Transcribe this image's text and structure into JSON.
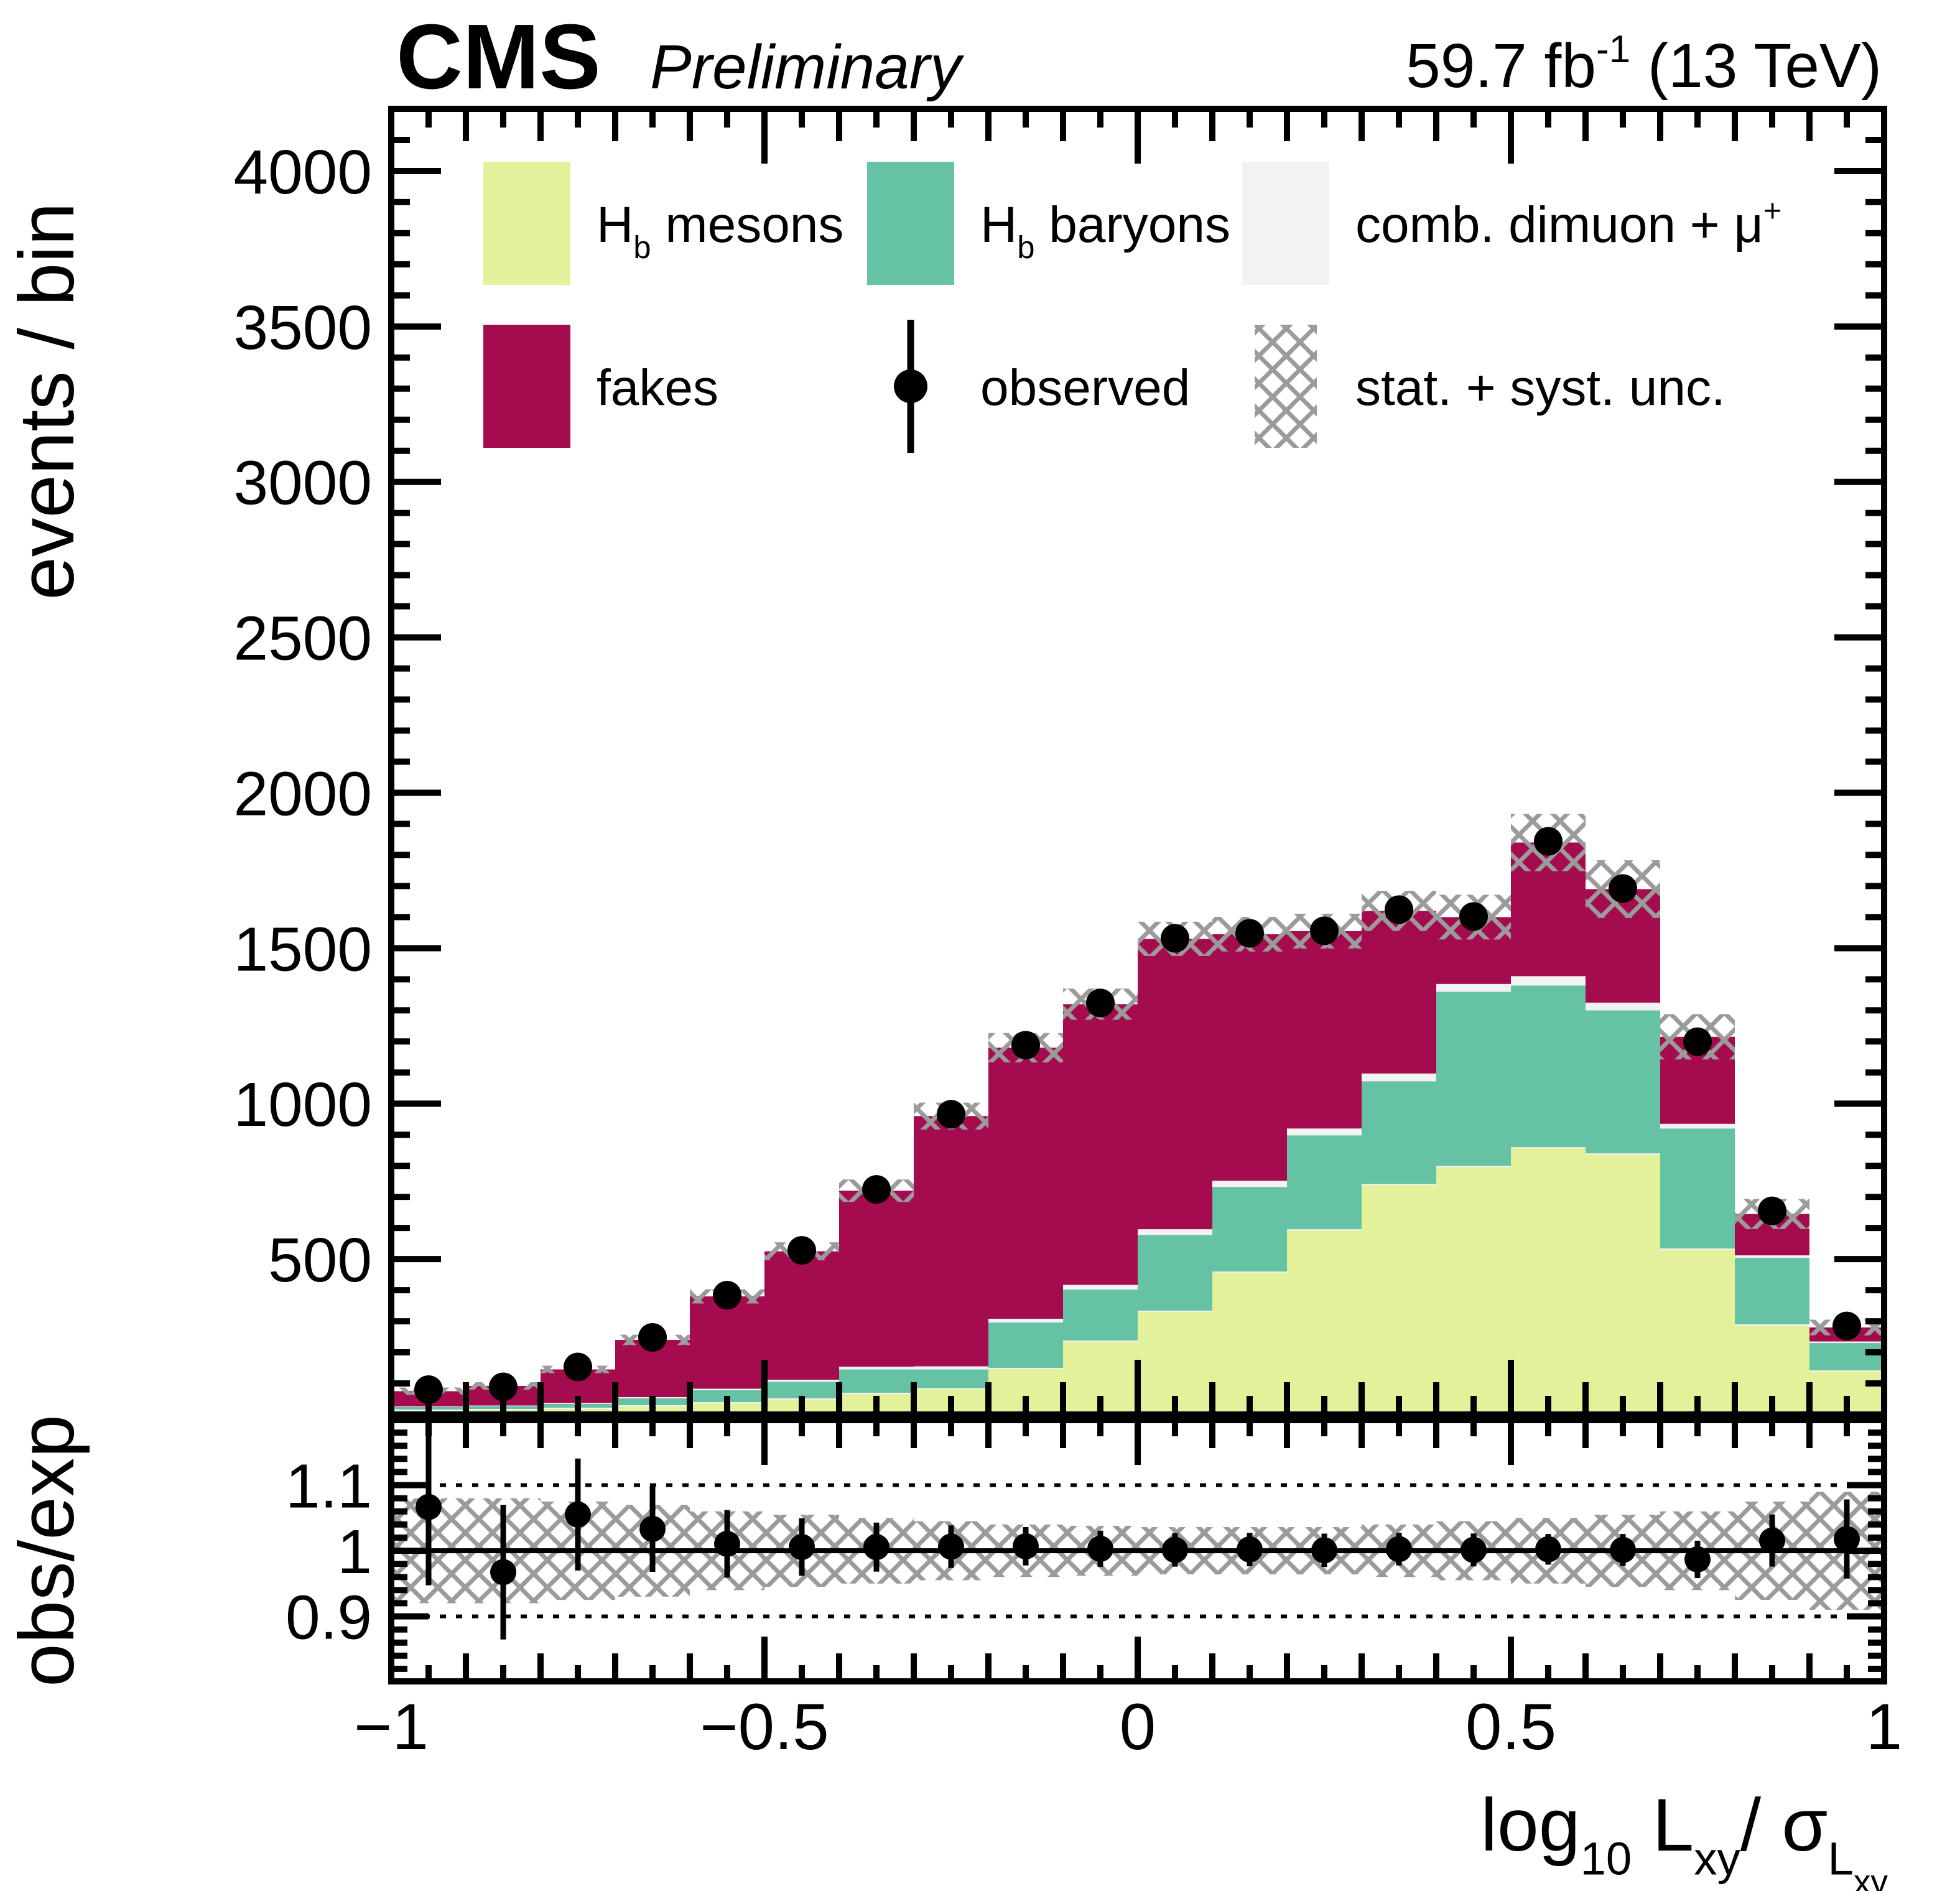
{
  "header": {
    "experiment": "CMS",
    "status": "Preliminary",
    "lumi_parts": [
      {
        "t": "59.7 fb"
      },
      {
        "t": "-1",
        "sup": 1
      },
      {
        "t": " (13 TeV)"
      }
    ]
  },
  "colors": {
    "hb_mesons": "#e3f29a",
    "hb_baryons": "#66c2a5",
    "comb_dimuon": "#f2f2f2",
    "fakes": "#a50b4f",
    "observed": "#000000",
    "uncertainty_hatch": "#9b9b9b",
    "axis": "#000000",
    "background": "#ffffff"
  },
  "legend": {
    "entries": [
      {
        "id": "hb-mesons",
        "type": "fill",
        "color": "#e3f29a",
        "label_parts": [
          {
            "t": "H"
          },
          {
            "t": "b",
            "sub": 1
          },
          {
            "t": " mesons"
          }
        ]
      },
      {
        "id": "hb-baryons",
        "type": "fill",
        "color": "#66c2a5",
        "label_parts": [
          {
            "t": "H"
          },
          {
            "t": "b",
            "sub": 1
          },
          {
            "t": " baryons"
          }
        ]
      },
      {
        "id": "comb-dimuon",
        "type": "fill",
        "color": "#f2f2f2",
        "label_parts": [
          {
            "t": "comb. dimuon + μ"
          },
          {
            "t": "+",
            "sup": 1
          }
        ]
      },
      {
        "id": "fakes",
        "type": "fill",
        "color": "#a50b4f",
        "label_parts": [
          {
            "t": "fakes"
          }
        ]
      },
      {
        "id": "observed",
        "type": "marker",
        "color": "#000000",
        "label_parts": [
          {
            "t": "observed"
          }
        ]
      },
      {
        "id": "stat-syst-unc",
        "type": "hatch",
        "color": "#9b9b9b",
        "label_parts": [
          {
            "t": "stat. + syst. unc."
          }
        ]
      }
    ]
  },
  "main_axis": {
    "y_title": "events / bin",
    "y_tick_labels": [
      "500",
      "1000",
      "1500",
      "2000",
      "2500",
      "3000",
      "3500",
      "4000"
    ],
    "y_tick_values": [
      500,
      1000,
      1500,
      2000,
      2500,
      3000,
      3500,
      4000
    ],
    "ylim": [
      0,
      4200
    ]
  },
  "ratio_axis": {
    "y_title": "obs/exp",
    "y_tick_labels": [
      "0.9",
      "1",
      "1.1"
    ],
    "y_tick_values": [
      0.9,
      1.0,
      1.1
    ],
    "ylim": [
      0.8,
      1.2
    ],
    "reference_line": 1.0,
    "dotted_lines": [
      0.9,
      1.1
    ]
  },
  "x_axis": {
    "title_parts": [
      {
        "t": "log"
      },
      {
        "t": "10",
        "sub": 1
      },
      {
        "t": " L"
      },
      {
        "t": "xy",
        "sub": 1
      },
      {
        "t": "/ "
      },
      {
        "t": "σ"
      },
      {
        "t": "L",
        "sub": 1
      },
      {
        "t": "xy",
        "sub": 2
      }
    ],
    "tick_labels": [
      "−1",
      "−0.5",
      "0",
      "0.5",
      "1"
    ],
    "tick_values": [
      -1,
      -0.5,
      0,
      0.5,
      1
    ],
    "xlim": [
      -1,
      1
    ]
  },
  "chart_data": {
    "type": "bar",
    "stacked": true,
    "panels": [
      "stacked histogram with observed points",
      "obs/exp ratio"
    ],
    "title": "CMS Preliminary, 59.7 fb^-1 (13 TeV)",
    "xlabel": "log10 Lxy / sigma_Lxy",
    "ylabel": "events / bin",
    "bin_edges": [
      -1.0,
      -0.9,
      -0.8,
      -0.7,
      -0.6,
      -0.5,
      -0.4,
      -0.3,
      -0.2,
      -0.1,
      0.0,
      0.1,
      0.2,
      0.3,
      0.4,
      0.5,
      0.6,
      0.7,
      0.8,
      0.9,
      1.0
    ],
    "series": [
      {
        "name": "hb_mesons",
        "label": "Hb mesons",
        "values": [
          16,
          18,
          22,
          30,
          40,
          52,
          70,
          85,
          150,
          238,
          334,
          460,
          596,
          742,
          800,
          860,
          840,
          534,
          290,
          142
        ]
      },
      {
        "name": "hb_baryons",
        "label": "Hb baryons",
        "values": [
          8,
          9,
          12,
          22,
          38,
          53,
          75,
          60,
          146,
          164,
          244,
          272,
          302,
          330,
          560,
          520,
          460,
          386,
          214,
          88
        ]
      },
      {
        "name": "comb_dimuon",
        "label": "comb. dimuon + mu+",
        "values": [
          2,
          2,
          3,
          4,
          5,
          7,
          9,
          10,
          12,
          15,
          18,
          20,
          22,
          25,
          25,
          30,
          25,
          15,
          8,
          5
        ]
      },
      {
        "name": "fakes",
        "label": "fakes",
        "values": [
          49,
          63,
          108,
          184,
          297,
          413,
          566,
          805,
          872,
          903,
          934,
          793,
          635,
          523,
          215,
          430,
          365,
          280,
          133,
          45
        ]
      }
    ],
    "expected_total": [
      75,
      92,
      145,
      240,
      380,
      525,
      720,
      960,
      1180,
      1320,
      1530,
      1545,
      1555,
      1620,
      1600,
      1840,
      1690,
      1215,
      645,
      280
    ],
    "observed": [
      80,
      89,
      153,
      248,
      384,
      528,
      724,
      966,
      1188,
      1324,
      1532,
      1548,
      1556,
      1624,
      1602,
      1844,
      1692,
      1199,
      655,
      285
    ],
    "uncertainty_ratio": [
      0.08,
      0.08,
      0.075,
      0.07,
      0.06,
      0.055,
      0.05,
      0.045,
      0.04,
      0.038,
      0.036,
      0.036,
      0.036,
      0.04,
      0.045,
      0.05,
      0.055,
      0.06,
      0.075,
      0.09
    ],
    "ratio_ylim": [
      0.8,
      1.2
    ],
    "grid": false,
    "legend_position": "top inside, two rows"
  }
}
